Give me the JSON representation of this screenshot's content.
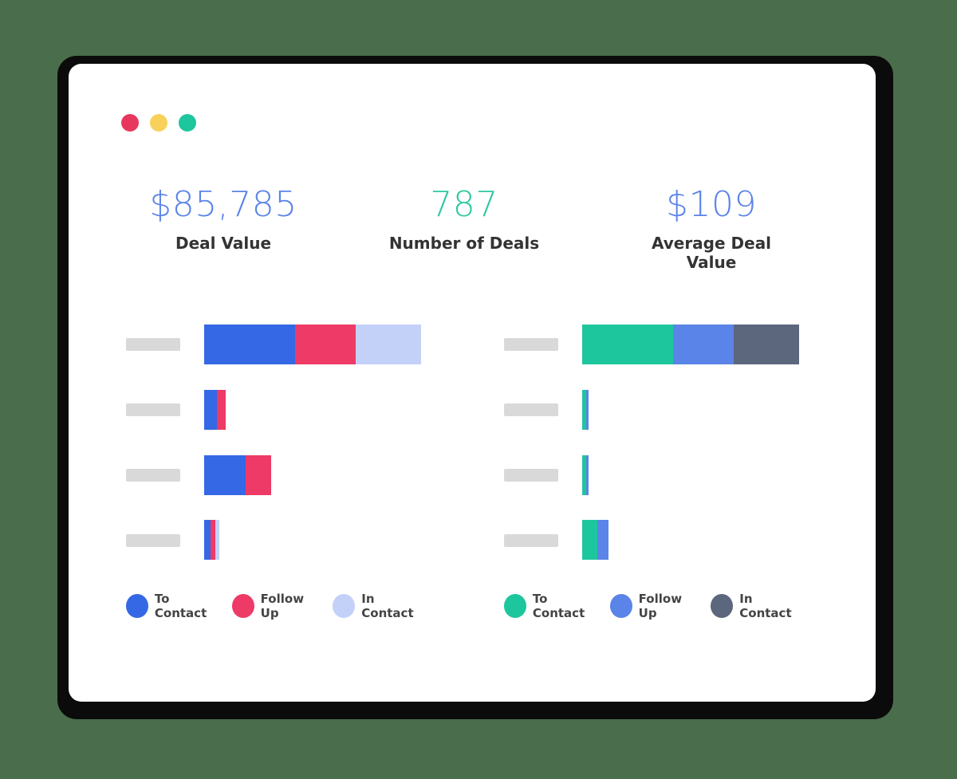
{
  "colors": {
    "background": "#4a6d4c",
    "window": "#ffffff",
    "dot_red": "#e8375f",
    "dot_yellow": "#f8d15b",
    "dot_green": "#1ec69d",
    "stat_blue": "#5b84e8",
    "stat_green": "#2fc8a1"
  },
  "window_controls": [
    "close-dot",
    "minimize-dot",
    "maximize-dot"
  ],
  "stats": [
    {
      "value": "$85,785",
      "label": "Deal Value",
      "color": "#5b84e8"
    },
    {
      "value": "787",
      "label": "Number of Deals",
      "color": "#2fc8a1"
    },
    {
      "value": "$109",
      "label": "Average Deal Value",
      "color": "#5b84e8"
    }
  ],
  "charts": [
    {
      "legend": [
        {
          "label": "To Contact",
          "color": "#3468e5"
        },
        {
          "label": "Follow Up",
          "color": "#ee3a66"
        },
        {
          "label": "In Contact",
          "color": "#c3d1f8"
        }
      ],
      "rows": [
        [
          42,
          28,
          30
        ],
        [
          6,
          4,
          0
        ],
        [
          19,
          12,
          0
        ],
        [
          3,
          2,
          2
        ]
      ]
    },
    {
      "legend": [
        {
          "label": "To Contact",
          "color": "#1ec69d"
        },
        {
          "label": "Follow Up",
          "color": "#5b84e8"
        },
        {
          "label": "In Contact",
          "color": "#5c667d"
        }
      ],
      "rows": [
        [
          42,
          28,
          30
        ],
        [
          2,
          1,
          0
        ],
        [
          2,
          1,
          0
        ],
        [
          7,
          5,
          0
        ]
      ]
    }
  ]
}
